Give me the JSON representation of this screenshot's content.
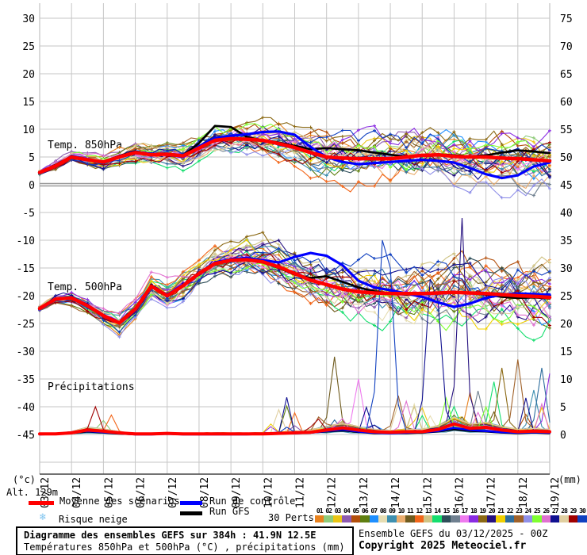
{
  "chart_data": {
    "type": "line",
    "title": "Diagramme des ensembles GEFS sur 384h : 41.9N 12.5E",
    "subtitle": "Températures 850hPa et 500hPa (°C) , précipitations (mm)",
    "run_info": "Ensemble GEFS du 03/12/2025 - 00Z",
    "copyright": "Copyright 2025 Meteociel.fr",
    "grid_color": "#c6c6c6",
    "left_axis": {
      "unit": "(°c)",
      "alt": "Alt. 129m",
      "ticks": [
        30,
        25,
        20,
        15,
        10,
        5,
        0,
        -5,
        -10,
        -15,
        -20,
        -25,
        -30,
        -35,
        -40,
        -45
      ]
    },
    "right_axis": {
      "unit": "(mm)",
      "ticks": [
        75,
        70,
        65,
        60,
        55,
        50,
        45,
        40,
        35,
        30,
        25,
        20,
        15,
        10,
        5,
        0
      ]
    },
    "x_axis": {
      "labels": [
        "03/12",
        "04/12",
        "05/12",
        "06/12",
        "07/12",
        "08/12",
        "09/12",
        "10/12",
        "11/12",
        "12/12",
        "13/12",
        "14/12",
        "15/12",
        "16/12",
        "17/12",
        "18/12",
        "19/12"
      ],
      "hours_total": 384,
      "step_hours": 12
    },
    "panels": [
      {
        "id": "t850",
        "label": "Temp. 850hPa",
        "mean": [
          2.2,
          3.4,
          5.0,
          4.5,
          4.1,
          5.0,
          5.8,
          5.4,
          5.5,
          5.2,
          6.6,
          8.0,
          8.3,
          8.2,
          8.0,
          7.4,
          6.7,
          5.8,
          5.0,
          4.8,
          4.7,
          4.7,
          4.7,
          5.0,
          5.3,
          5.4,
          5.1,
          5.0,
          5.0,
          4.8,
          4.7,
          4.5,
          4.3
        ],
        "control": [
          2.2,
          3.3,
          5.2,
          4.6,
          4.0,
          5.1,
          5.9,
          5.6,
          5.4,
          5.0,
          6.9,
          8.4,
          8.8,
          9.1,
          9.5,
          9.6,
          9.0,
          6.8,
          5.0,
          4.1,
          3.7,
          3.9,
          4.1,
          4.3,
          4.5,
          4.3,
          4.0,
          3.0,
          1.9,
          1.2,
          1.7,
          3.3,
          4.0
        ],
        "gfs": [
          2.3,
          3.6,
          5.1,
          4.4,
          4.2,
          5.2,
          6.0,
          5.5,
          5.6,
          5.3,
          7.5,
          10.6,
          10.4,
          8.6,
          8.0,
          7.6,
          7.0,
          6.4,
          6.6,
          6.4,
          6.2,
          5.8,
          5.4,
          5.1,
          5.2,
          5.5,
          5.3,
          5.1,
          5.3,
          5.8,
          6.2,
          6.0,
          5.7
        ]
      },
      {
        "id": "t500",
        "label": "Temp. 500hPa",
        "mean": [
          -22.3,
          -20.6,
          -20.4,
          -21.8,
          -23.6,
          -24.9,
          -22.4,
          -18.3,
          -20.0,
          -18.2,
          -16.0,
          -14.2,
          -13.6,
          -13.5,
          -13.9,
          -14.8,
          -16.0,
          -17.2,
          -18.0,
          -18.8,
          -19.3,
          -19.5,
          -19.6,
          -19.6,
          -19.6,
          -19.5,
          -19.4,
          -19.5,
          -19.6,
          -19.8,
          -20.0,
          -20.1,
          -20.3
        ],
        "control": [
          -22.4,
          -20.7,
          -20.3,
          -21.7,
          -23.5,
          -24.8,
          -22.6,
          -18.4,
          -19.8,
          -18.0,
          -16.2,
          -14.0,
          -13.4,
          -13.2,
          -13.6,
          -14.0,
          -13.0,
          -12.3,
          -12.8,
          -14.5,
          -17.3,
          -18.5,
          -19.0,
          -19.6,
          -20.2,
          -21.2,
          -22.0,
          -21.4,
          -20.4,
          -19.8,
          -19.6,
          -19.7,
          -19.8
        ],
        "gfs": [
          -22.3,
          -20.5,
          -20.4,
          -21.9,
          -23.7,
          -25.0,
          -22.3,
          -18.1,
          -19.9,
          -18.3,
          -15.8,
          -14.1,
          -13.5,
          -13.4,
          -14.0,
          -15.0,
          -16.2,
          -16.8,
          -16.5,
          -17.5,
          -18.5,
          -19.2,
          -19.6,
          -19.8,
          -19.6,
          -19.4,
          -19.3,
          -19.5,
          -19.8,
          -20.2,
          -20.4,
          -20.3,
          -20.5
        ]
      },
      {
        "id": "precip",
        "label": "Précipitations",
        "mean": [
          0.1,
          0.1,
          0.3,
          0.8,
          0.6,
          0.3,
          0.1,
          0.1,
          0.2,
          0.1,
          0.1,
          0.1,
          0.1,
          0.1,
          0.1,
          0.2,
          0.3,
          0.4,
          0.8,
          1.2,
          0.8,
          0.5,
          0.4,
          0.5,
          0.5,
          0.9,
          1.9,
          1.1,
          1.3,
          0.8,
          0.5,
          0.6,
          0.5
        ],
        "control": [
          0.0,
          0.1,
          0.4,
          0.6,
          0.4,
          0.2,
          0.0,
          0.0,
          0.1,
          0.0,
          0.0,
          0.0,
          0.0,
          0.0,
          0.1,
          0.2,
          0.2,
          0.3,
          0.6,
          0.9,
          0.5,
          0.3,
          0.2,
          0.3,
          0.4,
          0.6,
          1.2,
          0.8,
          0.6,
          0.4,
          0.3,
          0.4,
          0.3
        ],
        "gfs": [
          0.0,
          0.1,
          0.2,
          0.5,
          0.3,
          0.1,
          0.0,
          0.0,
          0.1,
          0.0,
          0.0,
          0.0,
          0.0,
          0.0,
          0.0,
          0.1,
          0.2,
          0.3,
          0.5,
          0.7,
          0.4,
          0.2,
          0.2,
          0.2,
          0.3,
          0.5,
          0.9,
          0.6,
          0.5,
          0.3,
          0.2,
          0.3,
          0.2
        ]
      }
    ],
    "members": {
      "count": 30,
      "labels": [
        "01",
        "02",
        "03",
        "04",
        "05",
        "06",
        "07",
        "08",
        "09",
        "10",
        "11",
        "12",
        "13",
        "14",
        "15",
        "16",
        "17",
        "18",
        "19",
        "20",
        "21",
        "22",
        "23",
        "24",
        "25",
        "26",
        "27",
        "28",
        "29",
        "30"
      ],
      "palette": [
        "#e8821e",
        "#8fcb7a",
        "#eac515",
        "#8e5bb0",
        "#b34f0c",
        "#5f7f10",
        "#1e8fff",
        "#e6ddb2",
        "#3e90b0",
        "#ebad6e",
        "#6f5b1e",
        "#f2661a",
        "#cfc385",
        "#15de6e",
        "#2f4f5a",
        "#708090",
        "#ee7aee",
        "#8a2be2",
        "#8b6914",
        "#261280",
        "#f0d000",
        "#2e6e9e",
        "#a0622a",
        "#9090e8",
        "#7fff30",
        "#e070d0",
        "#101090",
        "#e0cfa0",
        "#a00000",
        "#1040c0"
      ],
      "spread": {
        "t850": [
          0.8,
          4.0
        ],
        "t500": [
          0.9,
          4.8
        ],
        "fan_t850": 2.5,
        "fan_t500": 3.0
      },
      "precip_spikes": [
        [
          29,
          7,
          5
        ],
        [
          12,
          9,
          3.5
        ],
        [
          2,
          8,
          2.5
        ],
        [
          11,
          37,
          14
        ],
        [
          17,
          40,
          10
        ],
        [
          30,
          43,
          35
        ],
        [
          30,
          44,
          30
        ],
        [
          23,
          45,
          7
        ],
        [
          26,
          46,
          6
        ],
        [
          13,
          47,
          5
        ],
        [
          27,
          49,
          28
        ],
        [
          27,
          50,
          24
        ],
        [
          20,
          53,
          39
        ],
        [
          25,
          56,
          5
        ],
        [
          14,
          57,
          9.5
        ],
        [
          19,
          58,
          12
        ],
        [
          23,
          60,
          13.5
        ],
        [
          9,
          62,
          8
        ],
        [
          22,
          63,
          12
        ],
        [
          18,
          64,
          11
        ]
      ]
    },
    "legend": {
      "mean": "Moyenne des scénarios",
      "control": "Run de contrôle",
      "gfs": "Run GFS",
      "perts_label": "30 Perts.",
      "snow_label": "Risque neige",
      "snow_icon": "❄",
      "colors": {
        "mean": "#ff0000",
        "control": "#0000ff",
        "gfs": "#000000",
        "snow": "#7fc4ef"
      }
    }
  }
}
